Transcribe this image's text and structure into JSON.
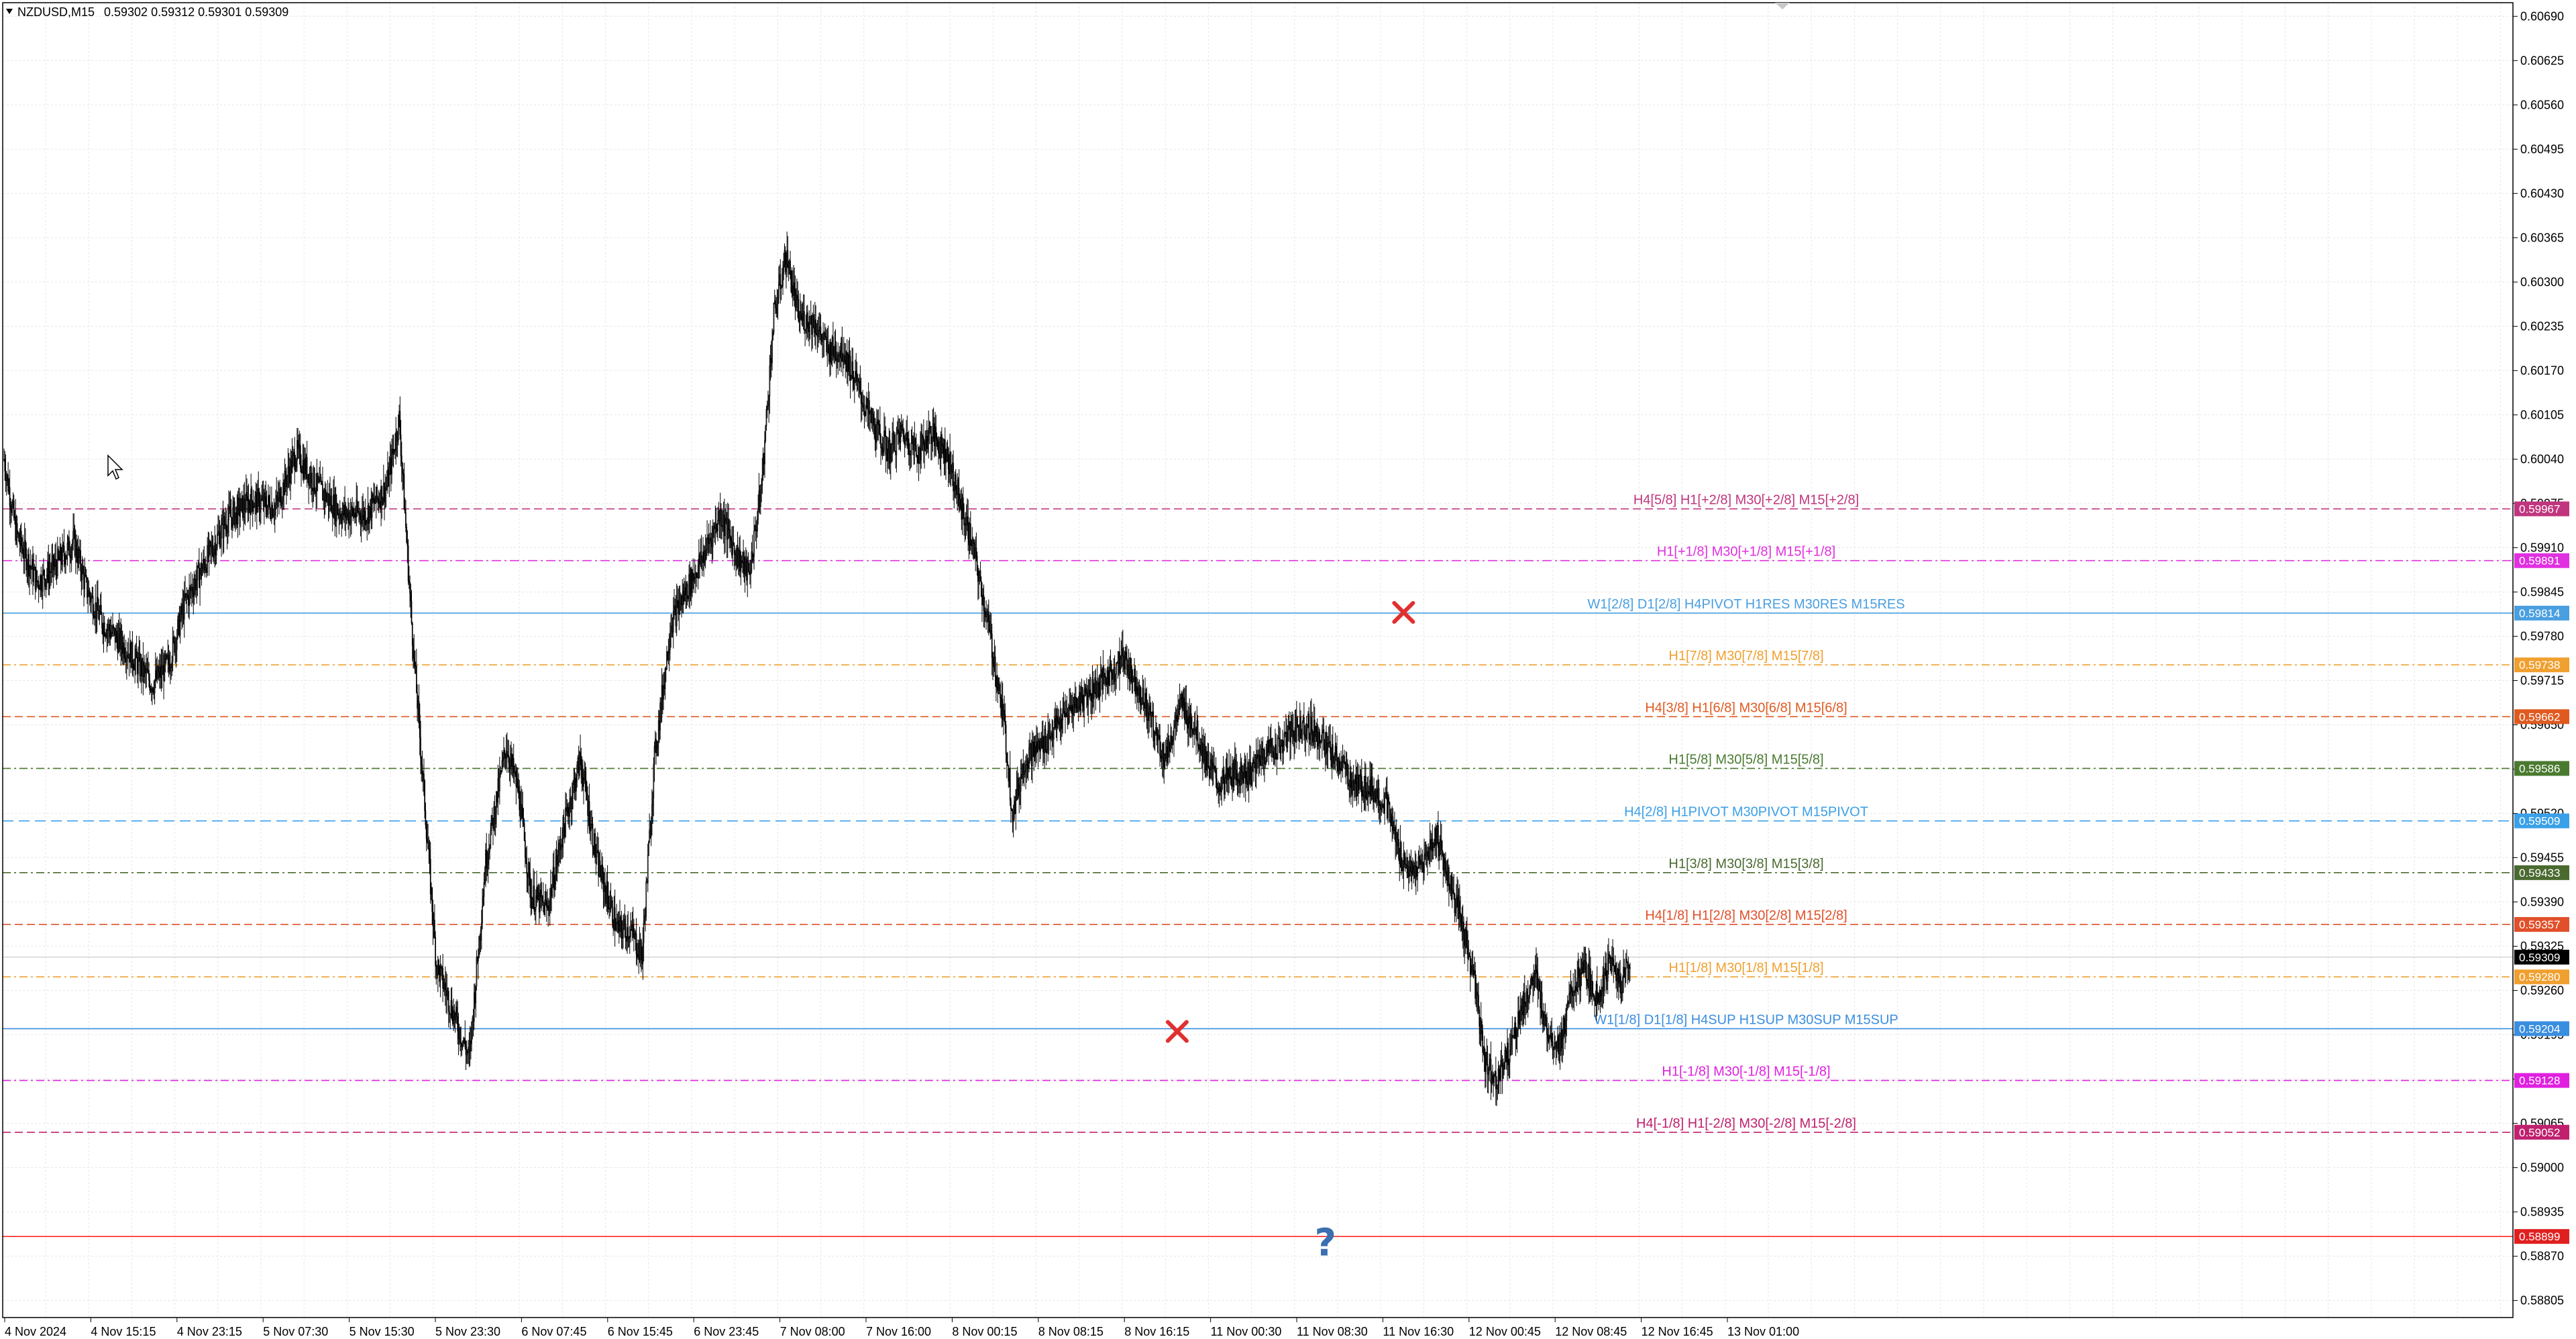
{
  "header": {
    "symbol": "NZDUSD,M15",
    "ohlc": "0.59302 0.59312 0.59301 0.59309"
  },
  "colors": {
    "background": "#ffffff",
    "grid": "#e6e6e6",
    "axis": "#000000",
    "candle": "#000000",
    "current_price_badge": "#000000",
    "target_line": "#ff0000",
    "target_badge": "#e02020",
    "question_mark": "#3a6fb0",
    "cross_marker": "#e03030"
  },
  "chart_data": {
    "type": "line",
    "symbol": "NZDUSD",
    "timeframe": "M15",
    "ylim": [
      0.5878,
      0.6071
    ],
    "y_ticks": [
      "0.60690",
      "0.60625",
      "0.60560",
      "0.60495",
      "0.60430",
      "0.60365",
      "0.60300",
      "0.60235",
      "0.60170",
      "0.60105",
      "0.60040",
      "0.59975",
      "0.59910",
      "0.59845",
      "0.59780",
      "0.59715",
      "0.59650",
      "0.59585",
      "0.59520",
      "0.59455",
      "0.59390",
      "0.59325",
      "0.59260",
      "0.59195",
      "0.59130",
      "0.59065",
      "0.59000",
      "0.58935",
      "0.58870",
      "0.58805"
    ],
    "x_ticks": [
      "4 Nov 2024",
      "4 Nov 15:15",
      "4 Nov 23:15",
      "5 Nov 07:30",
      "5 Nov 15:30",
      "5 Nov 23:30",
      "6 Nov 07:45",
      "6 Nov 15:45",
      "6 Nov 23:45",
      "7 Nov 08:00",
      "7 Nov 16:00",
      "8 Nov 00:15",
      "8 Nov 08:15",
      "8 Nov 16:15",
      "11 Nov 00:30",
      "11 Nov 08:30",
      "11 Nov 16:30",
      "12 Nov 00:45",
      "12 Nov 08:45",
      "12 Nov 16:45",
      "13 Nov 01:00"
    ],
    "x_slots": 2200,
    "price_path": [
      [
        0,
        0.6004
      ],
      [
        15,
        0.5993
      ],
      [
        40,
        0.5986
      ],
      [
        60,
        0.5988
      ],
      [
        85,
        0.5992
      ],
      [
        100,
        0.5985
      ],
      [
        120,
        0.598
      ],
      [
        150,
        0.5976
      ],
      [
        180,
        0.5971
      ],
      [
        200,
        0.5974
      ],
      [
        220,
        0.5983
      ],
      [
        245,
        0.5989
      ],
      [
        270,
        0.5995
      ],
      [
        300,
        0.5998
      ],
      [
        330,
        0.5997
      ],
      [
        355,
        0.6005
      ],
      [
        380,
        0.6
      ],
      [
        410,
        0.5996
      ],
      [
        440,
        0.5996
      ],
      [
        465,
        0.6
      ],
      [
        480,
        0.601
      ],
      [
        495,
        0.598
      ],
      [
        510,
        0.5955
      ],
      [
        525,
        0.593
      ],
      [
        545,
        0.5923
      ],
      [
        565,
        0.5916
      ],
      [
        585,
        0.5945
      ],
      [
        610,
        0.5962
      ],
      [
        625,
        0.5955
      ],
      [
        640,
        0.594
      ],
      [
        660,
        0.5938
      ],
      [
        680,
        0.595
      ],
      [
        700,
        0.596
      ],
      [
        720,
        0.5945
      ],
      [
        745,
        0.5935
      ],
      [
        760,
        0.5935
      ],
      [
        775,
        0.5931
      ],
      [
        790,
        0.596
      ],
      [
        810,
        0.598
      ],
      [
        830,
        0.5985
      ],
      [
        850,
        0.599
      ],
      [
        870,
        0.5996
      ],
      [
        890,
        0.599
      ],
      [
        905,
        0.5987
      ],
      [
        920,
        0.6
      ],
      [
        935,
        0.6025
      ],
      [
        950,
        0.6034
      ],
      [
        965,
        0.6025
      ],
      [
        985,
        0.6024
      ],
      [
        1000,
        0.602
      ],
      [
        1020,
        0.602
      ],
      [
        1045,
        0.6012
      ],
      [
        1060,
        0.6008
      ],
      [
        1075,
        0.6005
      ],
      [
        1090,
        0.6008
      ],
      [
        1110,
        0.6005
      ],
      [
        1125,
        0.6008
      ],
      [
        1145,
        0.6005
      ],
      [
        1160,
        0.5998
      ],
      [
        1175,
        0.5992
      ],
      [
        1195,
        0.598
      ],
      [
        1215,
        0.5965
      ],
      [
        1225,
        0.5952
      ],
      [
        1240,
        0.596
      ],
      [
        1260,
        0.5962
      ],
      [
        1280,
        0.5965
      ],
      [
        1300,
        0.5968
      ],
      [
        1320,
        0.597
      ],
      [
        1340,
        0.5972
      ],
      [
        1360,
        0.5975
      ],
      [
        1380,
        0.597
      ],
      [
        1395,
        0.5965
      ],
      [
        1410,
        0.596
      ],
      [
        1430,
        0.5968
      ],
      [
        1445,
        0.5965
      ],
      [
        1460,
        0.596
      ],
      [
        1475,
        0.5956
      ],
      [
        1495,
        0.5958
      ],
      [
        1515,
        0.5958
      ],
      [
        1530,
        0.5961
      ],
      [
        1550,
        0.5962
      ],
      [
        1565,
        0.5964
      ],
      [
        1580,
        0.5965
      ],
      [
        1595,
        0.5964
      ],
      [
        1610,
        0.5961
      ],
      [
        1625,
        0.5959
      ],
      [
        1640,
        0.5956
      ],
      [
        1660,
        0.5956
      ],
      [
        1680,
        0.5953
      ],
      [
        1695,
        0.5946
      ],
      [
        1710,
        0.5943
      ],
      [
        1725,
        0.5945
      ],
      [
        1740,
        0.5949
      ],
      [
        1755,
        0.5942
      ],
      [
        1770,
        0.5936
      ],
      [
        1785,
        0.5928
      ],
      [
        1800,
        0.5915
      ],
      [
        1815,
        0.5913
      ],
      [
        1830,
        0.5918
      ],
      [
        1845,
        0.5924
      ],
      [
        1860,
        0.5928
      ],
      [
        1875,
        0.592
      ],
      [
        1890,
        0.5918
      ],
      [
        1905,
        0.5926
      ],
      [
        1920,
        0.5929
      ],
      [
        1935,
        0.5925
      ],
      [
        1950,
        0.593
      ],
      [
        1965,
        0.5927
      ],
      [
        1975,
        0.59309
      ]
    ],
    "levels": [
      {
        "label": "H4[5/8] H1[+2/8] M30[+2/8] M15[+2/8]",
        "price": 0.59967,
        "badge": "0.59967",
        "color": "#c0357e",
        "dash": "12,6"
      },
      {
        "label": "H1[+1/8] M30[+1/8] M15[+1/8]",
        "price": 0.59891,
        "badge": "0.59891",
        "color": "#e030e0",
        "dash": "14,5,3,5"
      },
      {
        "label": "W1[2/8] D1[2/8] H4PIVOT H1RES M30RES M15RES",
        "price": 0.59814,
        "badge": "0.59814",
        "color": "#4a9fe0",
        "dash": ""
      },
      {
        "label": "H1[7/8] M30[7/8] M15[7/8]",
        "price": 0.59738,
        "badge": "0.59738",
        "color": "#f0a030",
        "dash": "12,5,3,5"
      },
      {
        "label": "H4[3/8] H1[6/8] M30[6/8] M15[6/8]",
        "price": 0.59662,
        "badge": "0.59662",
        "color": "#e05a20",
        "dash": "12,6"
      },
      {
        "label": "H1[5/8] M30[5/8] M15[5/8]",
        "price": 0.59586,
        "badge": "0.59586",
        "color": "#4a7a30",
        "dash": "12,5,3,5"
      },
      {
        "label": "H4[2/8] H1PIVOT M30PIVOT M15PIVOT",
        "price": 0.59509,
        "badge": "0.59509",
        "color": "#3aa0e8",
        "dash": "16,8"
      },
      {
        "label": "H1[3/8] M30[3/8] M15[3/8]",
        "price": 0.59433,
        "badge": "0.59433",
        "color": "#4a6a30",
        "dash": "12,5,3,5"
      },
      {
        "label": "H4[1/8] H1[2/8] M30[2/8] M15[2/8]",
        "price": 0.59357,
        "badge": "0.59357",
        "color": "#e0502a",
        "dash": "12,6"
      },
      {
        "label": "H1[1/8] M30[1/8] M15[1/8]",
        "price": 0.5928,
        "badge": "0.59280",
        "color": "#f0a030",
        "dash": "12,5,3,5"
      },
      {
        "label": "W1[1/8] D1[1/8] H4SUP H1SUP M30SUP M15SUP",
        "price": 0.59204,
        "badge": "0.59204",
        "color": "#3a8ee0",
        "dash": ""
      },
      {
        "label": "H1[-1/8] M30[-1/8] M15[-1/8]",
        "price": 0.59128,
        "badge": "0.59128",
        "color": "#e020e0",
        "dash": "12,5,3,5"
      },
      {
        "label": "H4[-1/8] H1[-2/8] M30[-2/8] M15[-2/8]",
        "price": 0.59052,
        "badge": "0.59052",
        "color": "#c0206e",
        "dash": "12,6"
      }
    ],
    "target_line": {
      "price": 0.58899,
      "badge": "0.58899"
    },
    "current_price": {
      "price": 0.59309,
      "badge": "0.59309"
    },
    "markers": [
      {
        "type": "cross",
        "slot": 1700,
        "price": 0.59815
      },
      {
        "type": "cross",
        "slot": 1425,
        "price": 0.592
      },
      {
        "type": "question",
        "slot": 1605,
        "price": 0.58885
      }
    ],
    "grid": true
  }
}
